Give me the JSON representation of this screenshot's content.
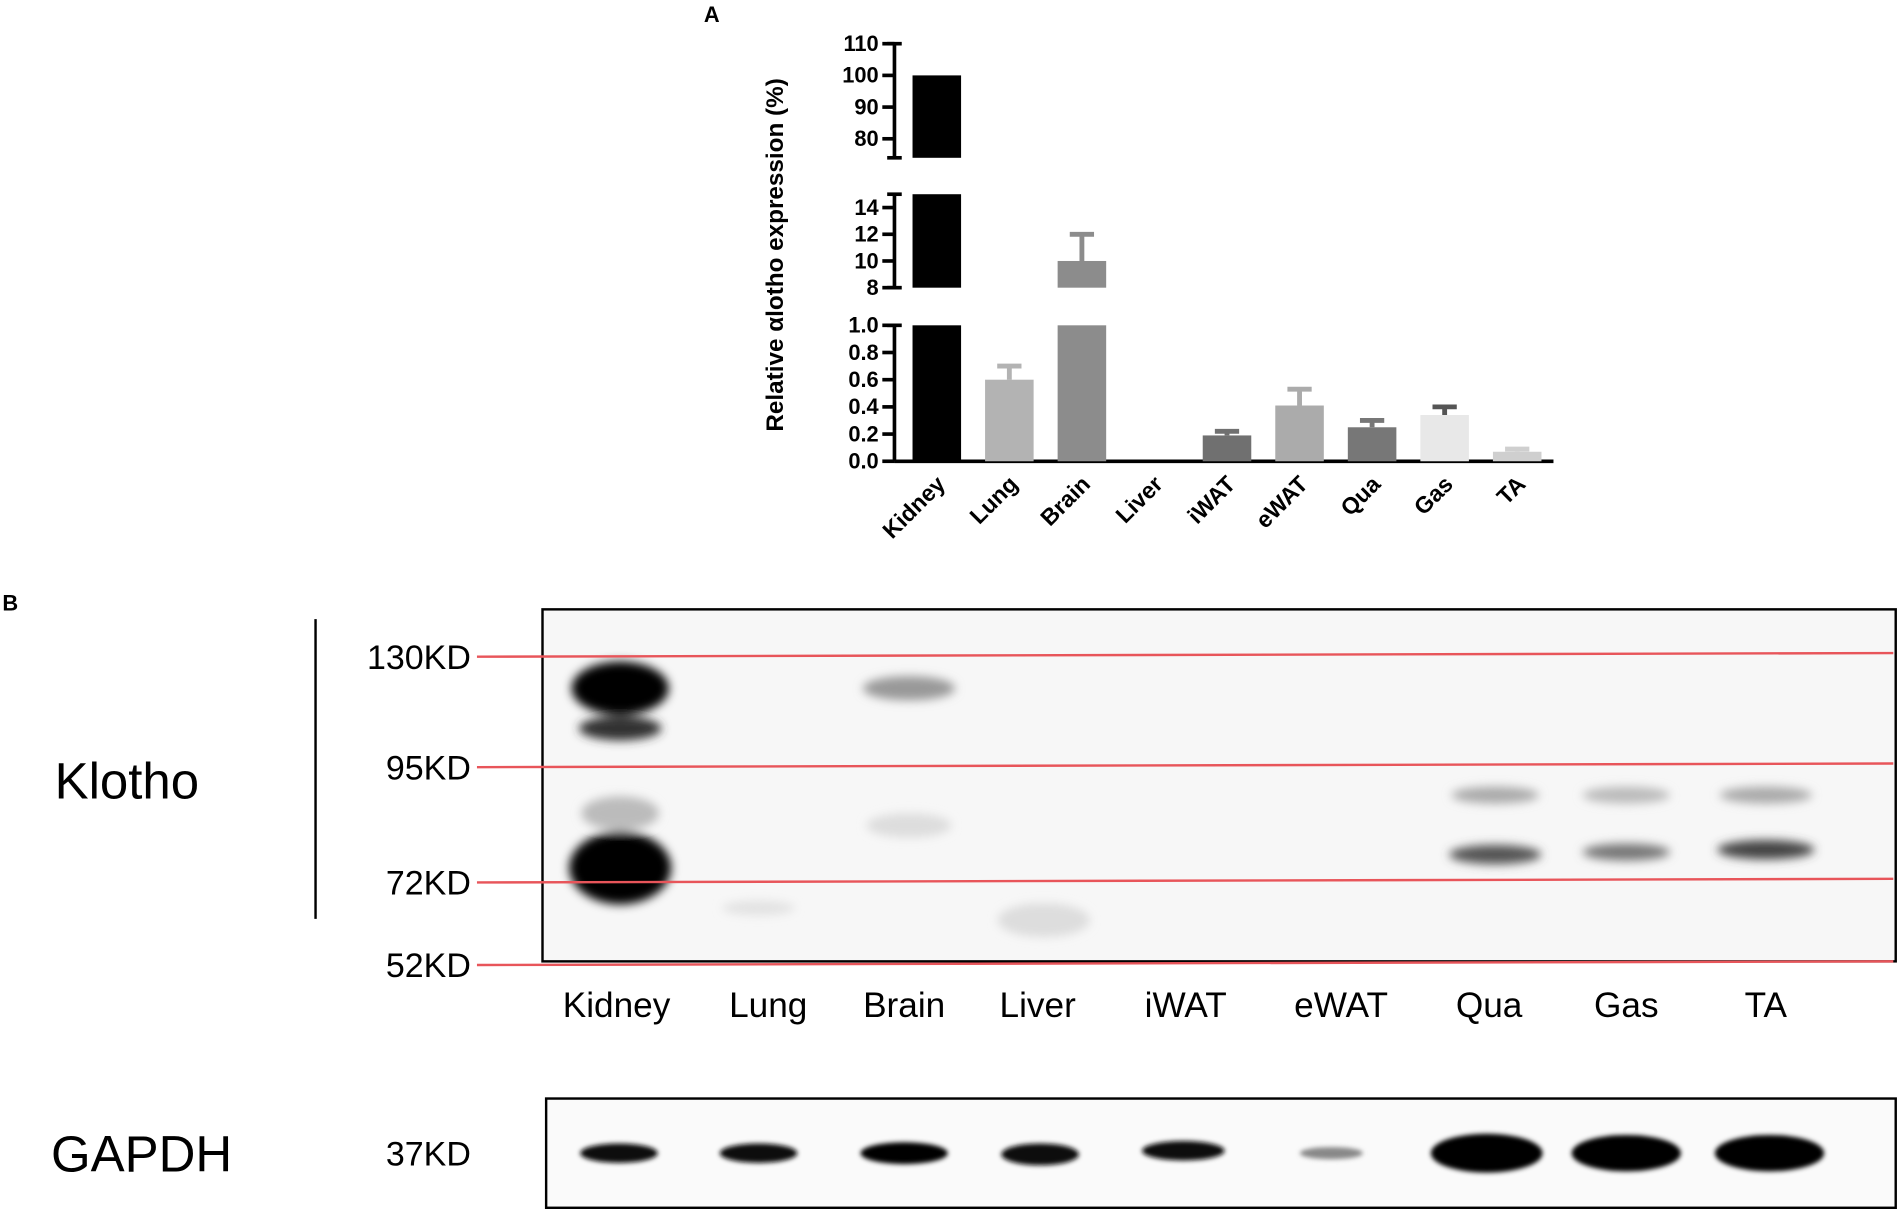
{
  "chart_data": {
    "type": "bar",
    "panel_label": "A",
    "ylabel": "Relative αlotho expression (%)",
    "categories": [
      "Kidney",
      "Lung",
      "Brain",
      "Liver",
      "iWAT",
      "eWAT",
      "Qua",
      "Gas",
      "TA"
    ],
    "values": [
      100,
      0.6,
      10,
      0,
      0.19,
      0.41,
      0.25,
      0.34,
      0.07
    ],
    "errors": [
      null,
      0.1,
      2,
      null,
      0.03,
      0.12,
      0.05,
      0.06,
      0.02
    ],
    "colors": [
      "#000000",
      "#b3b3b3",
      "#8c8c8c",
      "#999999",
      "#707070",
      "#ababab",
      "#777777",
      "#e8e8e8",
      "#cfcfcf"
    ],
    "y_segments": [
      {
        "ylim": [
          0,
          1
        ],
        "yticks": [
          {
            "value": 0,
            "label": "0.0"
          },
          0.2,
          0.4,
          0.6,
          0.8,
          {
            "value": 1,
            "label": "1.0"
          }
        ]
      },
      {
        "ylim": [
          8,
          15
        ],
        "yticks": [
          8,
          10,
          12,
          14
        ]
      },
      {
        "ylim": [
          74,
          110
        ],
        "yticks": [
          80,
          90,
          100,
          110
        ]
      }
    ]
  },
  "blot": {
    "panel_label": "B",
    "protein": "Klotho",
    "control": "GAPDH",
    "markers": [
      "130KD",
      "95KD",
      "72KD",
      "52KD"
    ],
    "control_marker": "37KD",
    "lanes": [
      "Kidney",
      "Lung",
      "Brain",
      "Liver",
      "iWAT",
      "eWAT",
      "Qua",
      "Gas",
      "TA"
    ]
  }
}
